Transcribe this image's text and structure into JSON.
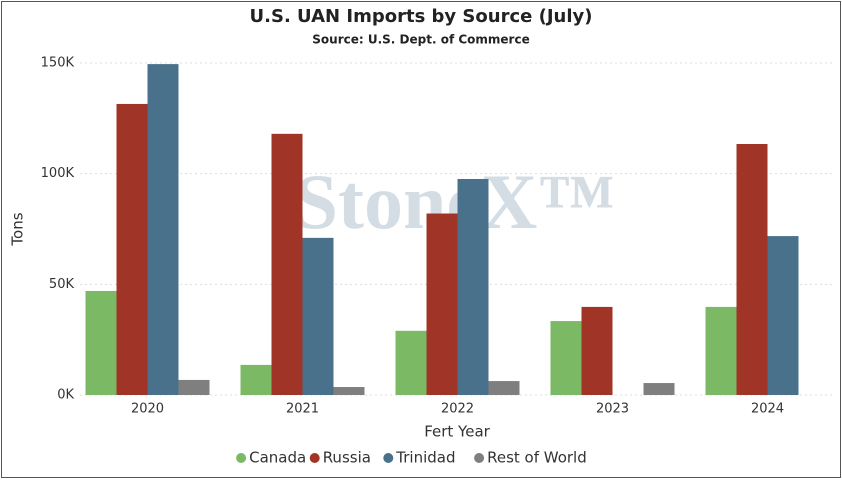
{
  "chart_data": {
    "type": "bar",
    "title": "U.S. UAN Imports by Source (July)",
    "subtitle": "Source: U.S. Dept. of Commerce",
    "watermark": "StoneX™",
    "x_label": "Fert Year",
    "y_label": "Tons",
    "categories": [
      "2020",
      "2021",
      "2022",
      "2023",
      "2024"
    ],
    "series": [
      {
        "name": "Canada",
        "color": "#7cb965",
        "values": [
          47000,
          13600,
          29000,
          33400,
          39800
        ]
      },
      {
        "name": "Russia",
        "color": "#a03427",
        "values": [
          131500,
          118000,
          82000,
          39800,
          113400
        ]
      },
      {
        "name": "Trinidad",
        "color": "#4a718b",
        "values": [
          149500,
          71000,
          97600,
          null,
          71800
        ]
      },
      {
        "name": "Rest of World",
        "color": "#7f7f7f",
        "values": [
          6800,
          3600,
          6300,
          5400,
          null
        ]
      }
    ],
    "ylim": [
      0,
      150000
    ],
    "yticks": [
      {
        "value": 0,
        "label": "0K"
      },
      {
        "value": 50000,
        "label": "50K"
      },
      {
        "value": 100000,
        "label": "100K"
      },
      {
        "value": 150000,
        "label": "150K"
      }
    ],
    "grid": true,
    "legend": "bottom"
  }
}
